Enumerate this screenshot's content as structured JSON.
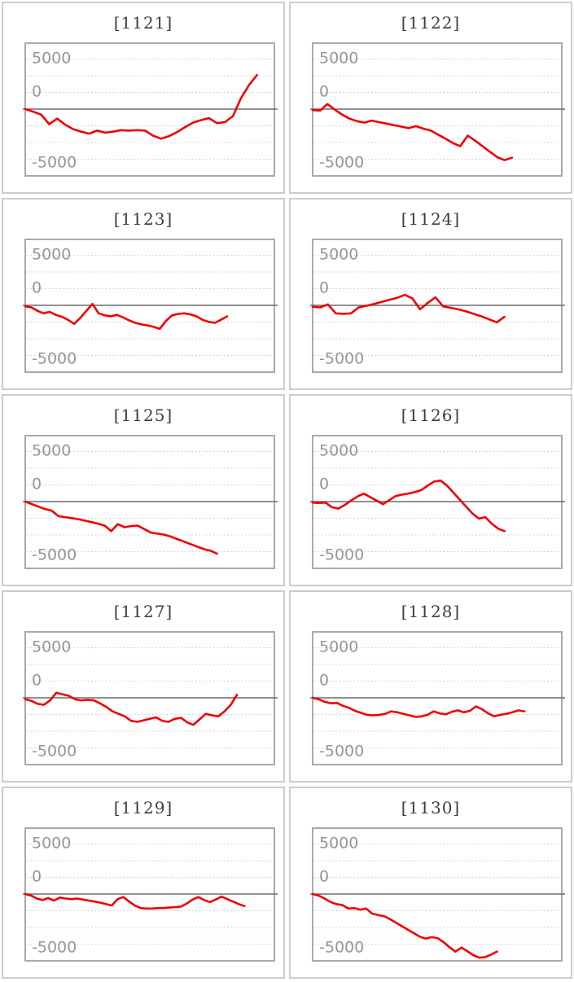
{
  "chart_defaults": {
    "type": "line",
    "series_color": "#f20000",
    "zero_line_color": "#6b6b6b",
    "grid_color": "#cdcdcd",
    "plot_border_color": "#a9a9a9",
    "card_border_color": "#cccccc",
    "label_color": "#969696",
    "title_color": "#3d3d3d",
    "y_tick_labels": [
      "5000",
      "0",
      "-5000"
    ],
    "y_ticks": [
      5000,
      0,
      -5000
    ],
    "ylim": [
      -6700,
      6700
    ],
    "grid": "dotted horizontal lines, solid dark line at 0",
    "legend": "none",
    "x_axis_labels": "none"
  },
  "chart_data": [
    {
      "type": "line",
      "title": "[1121]",
      "x_span_fraction": 0.93,
      "values": [
        0,
        -250,
        -550,
        -1500,
        -950,
        -1550,
        -2000,
        -2250,
        -2450,
        -2150,
        -2350,
        -2250,
        -2100,
        -2150,
        -2100,
        -2150,
        -2650,
        -2950,
        -2700,
        -2300,
        -1800,
        -1350,
        -1100,
        -900,
        -1400,
        -1300,
        -700,
        1100,
        2400,
        3400
      ]
    },
    {
      "type": "line",
      "title": "[1122]",
      "x_span_fraction": 0.8,
      "values": [
        -100,
        -150,
        500,
        -50,
        -550,
        -950,
        -1200,
        -1350,
        -1150,
        -1300,
        -1450,
        -1600,
        -1750,
        -1900,
        -1700,
        -1950,
        -2150,
        -2550,
        -2950,
        -3400,
        -3700,
        -2650,
        -3150,
        -3700,
        -4250,
        -4800,
        -5100,
        -4850
      ]
    },
    {
      "type": "line",
      "title": "[1123]",
      "x_span_fraction": 0.81,
      "values": [
        -100,
        -200,
        -550,
        -800,
        -650,
        -950,
        -1150,
        -1450,
        -1850,
        -1250,
        -550,
        150,
        -800,
        -1000,
        -1100,
        -950,
        -1200,
        -1500,
        -1750,
        -1900,
        -2000,
        -2150,
        -2350,
        -1550,
        -1000,
        -850,
        -800,
        -900,
        -1100,
        -1450,
        -1650,
        -1750,
        -1450,
        -1100
      ]
    },
    {
      "type": "line",
      "title": "[1124]",
      "x_span_fraction": 0.77,
      "values": [
        -150,
        -200,
        100,
        -800,
        -850,
        -800,
        -200,
        -50,
        150,
        350,
        550,
        750,
        1050,
        700,
        -400,
        250,
        800,
        -100,
        -250,
        -400,
        -600,
        -850,
        -1100,
        -1400,
        -1700,
        -1150
      ]
    },
    {
      "type": "line",
      "title": "[1125]",
      "x_span_fraction": 0.77,
      "values": [
        0,
        -250,
        -500,
        -750,
        -900,
        -1450,
        -1550,
        -1650,
        -1750,
        -1900,
        -2050,
        -2200,
        -2400,
        -2950,
        -2250,
        -2550,
        -2450,
        -2400,
        -2750,
        -3100,
        -3200,
        -3300,
        -3500,
        -3750,
        -4000,
        -4250,
        -4500,
        -4750,
        -4900,
        -5200
      ]
    },
    {
      "type": "line",
      "title": "[1126]",
      "x_span_fraction": 0.77,
      "values": [
        -100,
        -150,
        -100,
        -550,
        -700,
        -350,
        100,
        500,
        800,
        450,
        100,
        -250,
        150,
        550,
        700,
        800,
        950,
        1150,
        1600,
        2000,
        2100,
        1600,
        900,
        200,
        -500,
        -1200,
        -1700,
        -1550,
        -2200,
        -2700,
        -2950
      ]
    },
    {
      "type": "line",
      "title": "[1127]",
      "x_span_fraction": 0.85,
      "values": [
        -150,
        -300,
        -600,
        -700,
        -250,
        500,
        350,
        200,
        -150,
        -250,
        -200,
        -250,
        -550,
        -900,
        -1350,
        -1600,
        -1850,
        -2300,
        -2400,
        -2250,
        -2100,
        -1950,
        -2300,
        -2400,
        -2100,
        -2000,
        -2450,
        -2700,
        -2150,
        -1600,
        -1750,
        -1850,
        -1350,
        -700,
        300
      ]
    },
    {
      "type": "line",
      "title": "[1128]",
      "x_span_fraction": 0.85,
      "values": [
        0,
        -150,
        -400,
        -550,
        -500,
        -800,
        -1000,
        -1300,
        -1500,
        -1700,
        -1750,
        -1700,
        -1600,
        -1350,
        -1450,
        -1600,
        -1750,
        -1900,
        -1850,
        -1700,
        -1350,
        -1550,
        -1650,
        -1400,
        -1250,
        -1450,
        -1300,
        -850,
        -1150,
        -1550,
        -1850,
        -1700,
        -1600,
        -1450,
        -1250,
        -1350
      ]
    },
    {
      "type": "line",
      "title": "[1129]",
      "x_span_fraction": 0.88,
      "values": [
        0,
        -150,
        -450,
        -600,
        -400,
        -650,
        -350,
        -450,
        -500,
        -450,
        -550,
        -650,
        -750,
        -850,
        -1000,
        -1150,
        -500,
        -300,
        -750,
        -1150,
        -1400,
        -1450,
        -1450,
        -1400,
        -1400,
        -1350,
        -1300,
        -1250,
        -950,
        -550,
        -300,
        -600,
        -800,
        -550,
        -250,
        -500,
        -750,
        -1000,
        -1200
      ]
    },
    {
      "type": "line",
      "title": "[1130]",
      "x_span_fraction": 0.74,
      "values": [
        0,
        -150,
        -450,
        -800,
        -1000,
        -1100,
        -1450,
        -1400,
        -1550,
        -1450,
        -1950,
        -2100,
        -2200,
        -2500,
        -2850,
        -3200,
        -3550,
        -3900,
        -4250,
        -4450,
        -4300,
        -4400,
        -4800,
        -5300,
        -5750,
        -5350,
        -5700,
        -6100,
        -6350,
        -6300,
        -6050,
        -5750
      ]
    }
  ]
}
